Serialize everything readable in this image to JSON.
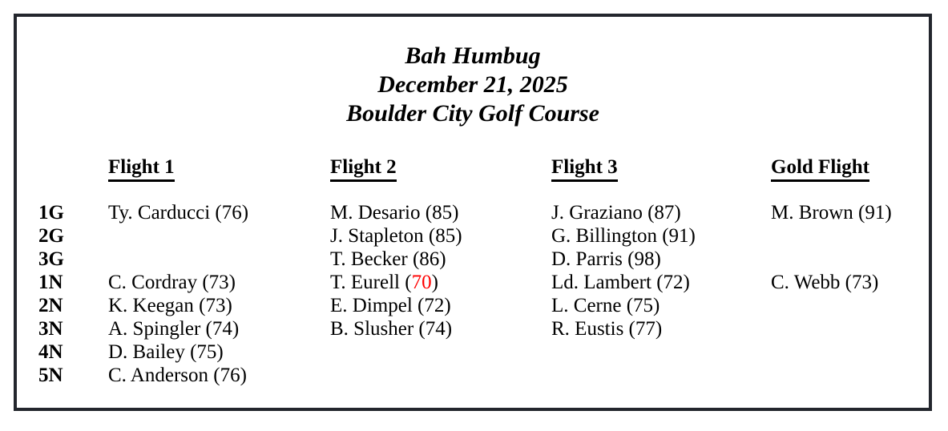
{
  "page": {
    "title_lines": [
      "Bah Humbug",
      "December 21, 2025",
      "Boulder City Golf Course"
    ]
  },
  "table": {
    "columns": [
      "Flight 1",
      "Flight 2",
      "Flight 3",
      "Gold Flight"
    ],
    "rows": [
      {
        "label": "1G",
        "entries": [
          {
            "name": "Ty. Carducci",
            "score": "76"
          },
          {
            "name": "M. Desario",
            "score": "85"
          },
          {
            "name": "J. Graziano",
            "score": "87"
          },
          {
            "name": "M. Brown",
            "score": "91"
          }
        ]
      },
      {
        "label": "2G",
        "entries": [
          null,
          {
            "name": "J. Stapleton",
            "score": "85"
          },
          {
            "name": "G. Billington",
            "score": "91"
          },
          null
        ]
      },
      {
        "label": "3G",
        "entries": [
          null,
          {
            "name": "T. Becker",
            "score": "86"
          },
          {
            "name": "D. Parris",
            "score": "98"
          },
          null
        ]
      },
      {
        "label": "1N",
        "entries": [
          {
            "name": "C. Cordray",
            "score": "73"
          },
          {
            "name": "T. Eurell",
            "score": "70",
            "score_color": "#ff0000"
          },
          {
            "name": "Ld. Lambert",
            "score": "72"
          },
          {
            "name": "C. Webb",
            "score": "73"
          }
        ]
      },
      {
        "label": "2N",
        "entries": [
          {
            "name": "K. Keegan",
            "score": "73"
          },
          {
            "name": "E. Dimpel",
            "score": "72"
          },
          {
            "name": "L. Cerne",
            "score": "75"
          },
          null
        ]
      },
      {
        "label": "3N",
        "entries": [
          {
            "name": "A. Spingler",
            "score": "74"
          },
          {
            "name": "B. Slusher",
            "score": "74"
          },
          {
            "name": "R. Eustis",
            "score": "77"
          },
          null
        ]
      },
      {
        "label": "4N",
        "entries": [
          {
            "name": "D. Bailey",
            "score": "75"
          },
          null,
          null,
          null
        ]
      },
      {
        "label": "5N",
        "entries": [
          {
            "name": "C. Anderson",
            "score": "76"
          },
          null,
          null,
          null
        ]
      }
    ]
  },
  "colors": {
    "border": "#23262d",
    "text": "#000000",
    "highlight_score": "#ff0000"
  }
}
